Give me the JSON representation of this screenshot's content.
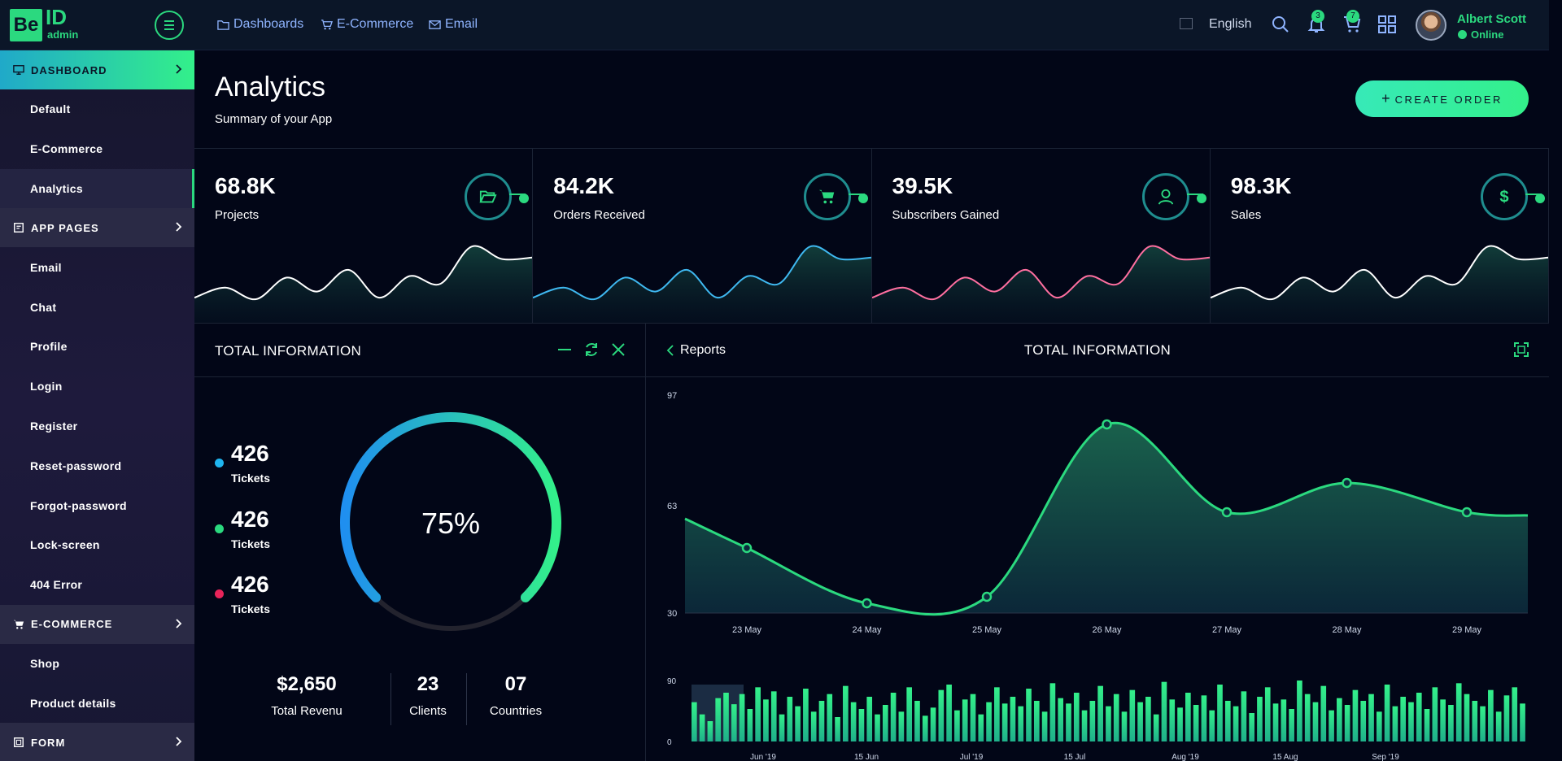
{
  "header": {
    "logo_be": "Be",
    "logo_id": "ID",
    "logo_admin": "admin",
    "nav": [
      {
        "label": "Dashboards",
        "icon": "folder-icon"
      },
      {
        "label": "E-Commerce",
        "icon": "cart-icon"
      },
      {
        "label": "Email",
        "icon": "mail-icon"
      }
    ],
    "language": "English",
    "notifications_count": "3",
    "cart_count": "7",
    "user": {
      "name": "Albert Scott",
      "status": "Online"
    }
  },
  "sidebar": {
    "sections": [
      {
        "label": "DASHBOARD",
        "icon": "monitor-icon",
        "active": true,
        "items": [
          "Default",
          "E-Commerce",
          "Analytics"
        ],
        "current": "Analytics"
      },
      {
        "label": "APP PAGES",
        "icon": "pages-icon",
        "items": [
          "Email",
          "Chat",
          "Profile",
          "Login",
          "Register",
          "Reset-password",
          "Forgot-password",
          "Lock-screen",
          "404 Error"
        ]
      },
      {
        "label": "E-COMMERCE",
        "icon": "cart-icon",
        "items": [
          "Shop",
          "Product details"
        ]
      },
      {
        "label": "FORM",
        "icon": "form-icon",
        "items": []
      }
    ]
  },
  "page": {
    "title": "Analytics",
    "subtitle": "Summary of your App",
    "create_button": "CREATE ORDER"
  },
  "stats": [
    {
      "value": "68.8K",
      "label": "Projects",
      "icon": "folder-open-icon",
      "color": "#ffffff"
    },
    {
      "value": "84.2K",
      "label": "Orders Received",
      "icon": "cart-icon",
      "color": "#3fb8f0"
    },
    {
      "value": "39.5K",
      "label": "Subscribers Gained",
      "icon": "user-icon",
      "color": "#ff6fa0"
    },
    {
      "value": "98.3K",
      "label": "Sales",
      "icon": "dollar-icon",
      "color": "#ffffff"
    }
  ],
  "total_info": {
    "title": "TOTAL INFORMATION",
    "legend": [
      {
        "value": "426",
        "label": "Tickets",
        "color": "#1fb5f0"
      },
      {
        "value": "426",
        "label": "Tickets",
        "color": "#2bd97f"
      },
      {
        "value": "426",
        "label": "Tickets",
        "color": "#e8245a"
      }
    ],
    "percent_label": "75%",
    "percent": 75,
    "kpis": [
      {
        "value": "$2,650",
        "label": "Total Revenu"
      },
      {
        "value": "23",
        "label": "Clients"
      },
      {
        "value": "07",
        "label": "Countries"
      }
    ]
  },
  "report": {
    "back_label": "Reports",
    "title": "TOTAL INFORMATION"
  },
  "chart_data": [
    {
      "type": "area",
      "categories": [
        "23 May",
        "24 May",
        "25 May",
        "26 May",
        "27 May",
        "28 May",
        "29 May"
      ],
      "values": [
        50,
        33,
        35,
        88,
        61,
        70,
        61
      ],
      "y_ticks": [
        30,
        63,
        97
      ],
      "ylim": [
        30,
        97
      ],
      "color": "#2bd97f"
    },
    {
      "type": "bar",
      "x_ticks": [
        "Jun '19",
        "15 Jun",
        "Jul '19",
        "15 Jul",
        "Aug '19",
        "15 Aug",
        "Sep '19"
      ],
      "y_ticks": [
        0,
        90
      ],
      "ylim": [
        0,
        90
      ],
      "values": [
        58,
        40,
        30,
        64,
        72,
        55,
        70,
        48,
        80,
        62,
        74,
        40,
        66,
        52,
        78,
        44,
        60,
        70,
        36,
        82,
        58,
        48,
        66,
        40,
        54,
        72,
        44,
        80,
        60,
        38,
        50,
        76,
        84,
        46,
        62,
        70,
        40,
        58,
        80,
        56,
        66,
        52,
        78,
        60,
        44,
        86,
        64,
        56,
        72,
        46,
        60,
        82,
        52,
        70,
        44,
        76,
        58,
        66,
        40,
        88,
        62,
        50,
        72,
        54,
        68,
        46,
        84,
        60,
        52,
        74,
        42,
        66,
        80,
        56,
        62,
        48,
        90,
        70,
        58,
        82,
        46,
        64,
        54,
        76,
        60,
        70,
        44,
        84,
        52,
        66,
        58,
        72,
        48,
        80,
        62,
        54,
        86,
        70,
        60,
        52,
        76,
        44,
        68,
        80,
        56
      ]
    }
  ]
}
